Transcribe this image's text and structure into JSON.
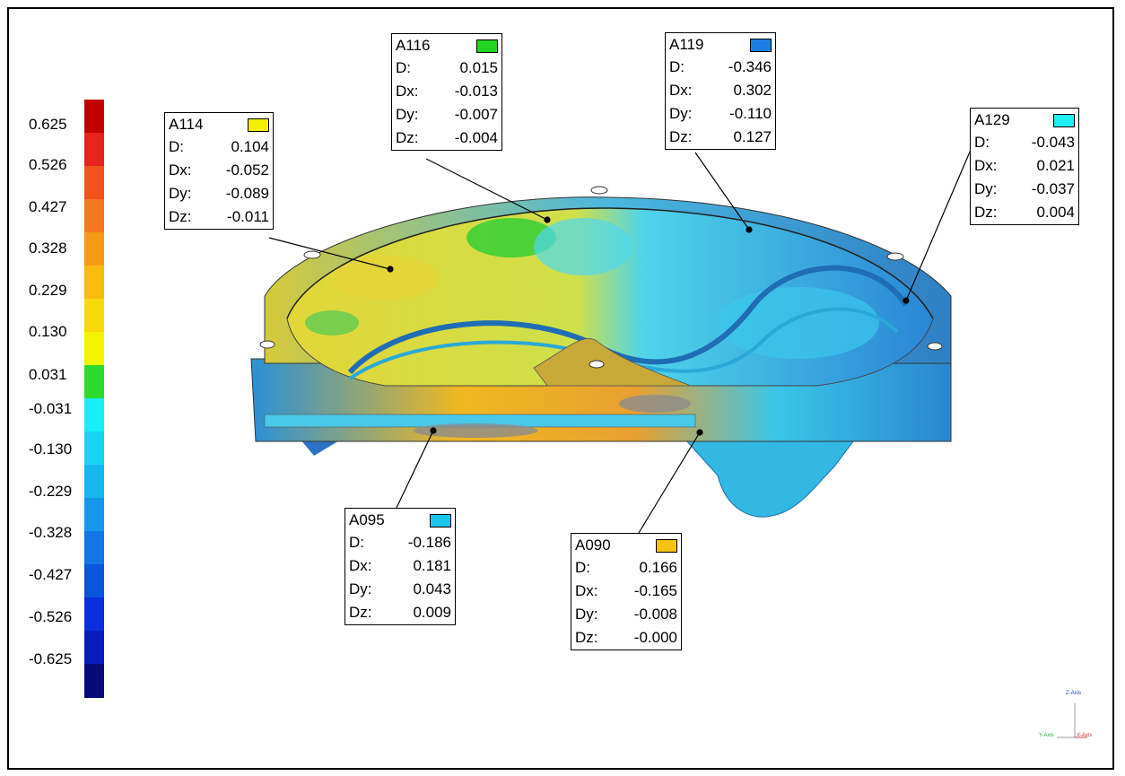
{
  "legend": {
    "labels": [
      "0.625",
      "0.526",
      "0.427",
      "0.328",
      "0.229",
      "0.130",
      "0.031",
      "-0.031",
      "-0.130",
      "-0.229",
      "-0.328",
      "-0.427",
      "-0.526",
      "-0.625"
    ],
    "colors": [
      "#c00000",
      "#e8221c",
      "#f2521c",
      "#f4781f",
      "#f69a16",
      "#f9bb10",
      "#f8da0a",
      "#f3f500",
      "#2ed92e",
      "#19edf7",
      "#1ad2f2",
      "#16b6ef",
      "#1597ec",
      "#1276e6",
      "#0b55dc",
      "#0a2fde",
      "#071dbb",
      "#050c7a"
    ]
  },
  "callouts": [
    {
      "id": "A114",
      "color": "#f4f000",
      "D": "0.104",
      "Dx": "-0.052",
      "Dy": "-0.089",
      "Dz": "-0.011"
    },
    {
      "id": "A116",
      "color": "#24d424",
      "D": "0.015",
      "Dx": "-0.013",
      "Dy": "-0.007",
      "Dz": "-0.004"
    },
    {
      "id": "A119",
      "color": "#1b7ee8",
      "D": "-0.346",
      "Dx": "0.302",
      "Dy": "-0.110",
      "Dz": "0.127"
    },
    {
      "id": "A129",
      "color": "#1ff0f4",
      "D": "-0.043",
      "Dx": "0.021",
      "Dy": "-0.037",
      "Dz": "0.004"
    },
    {
      "id": "A095",
      "color": "#1ac4f0",
      "D": "-0.186",
      "Dx": "0.181",
      "Dy": "0.043",
      "Dz": "0.009"
    },
    {
      "id": "A090",
      "color": "#f4c214",
      "D": "0.166",
      "Dx": "-0.165",
      "Dy": "-0.008",
      "Dz": "-0.000"
    }
  ],
  "row_keys": {
    "D": "D:",
    "Dx": "Dx:",
    "Dy": "Dy:",
    "Dz": "Dz:"
  },
  "axis": {
    "z": "Z-Axis",
    "y": "Y-Axis",
    "x": "X-Axis"
  }
}
